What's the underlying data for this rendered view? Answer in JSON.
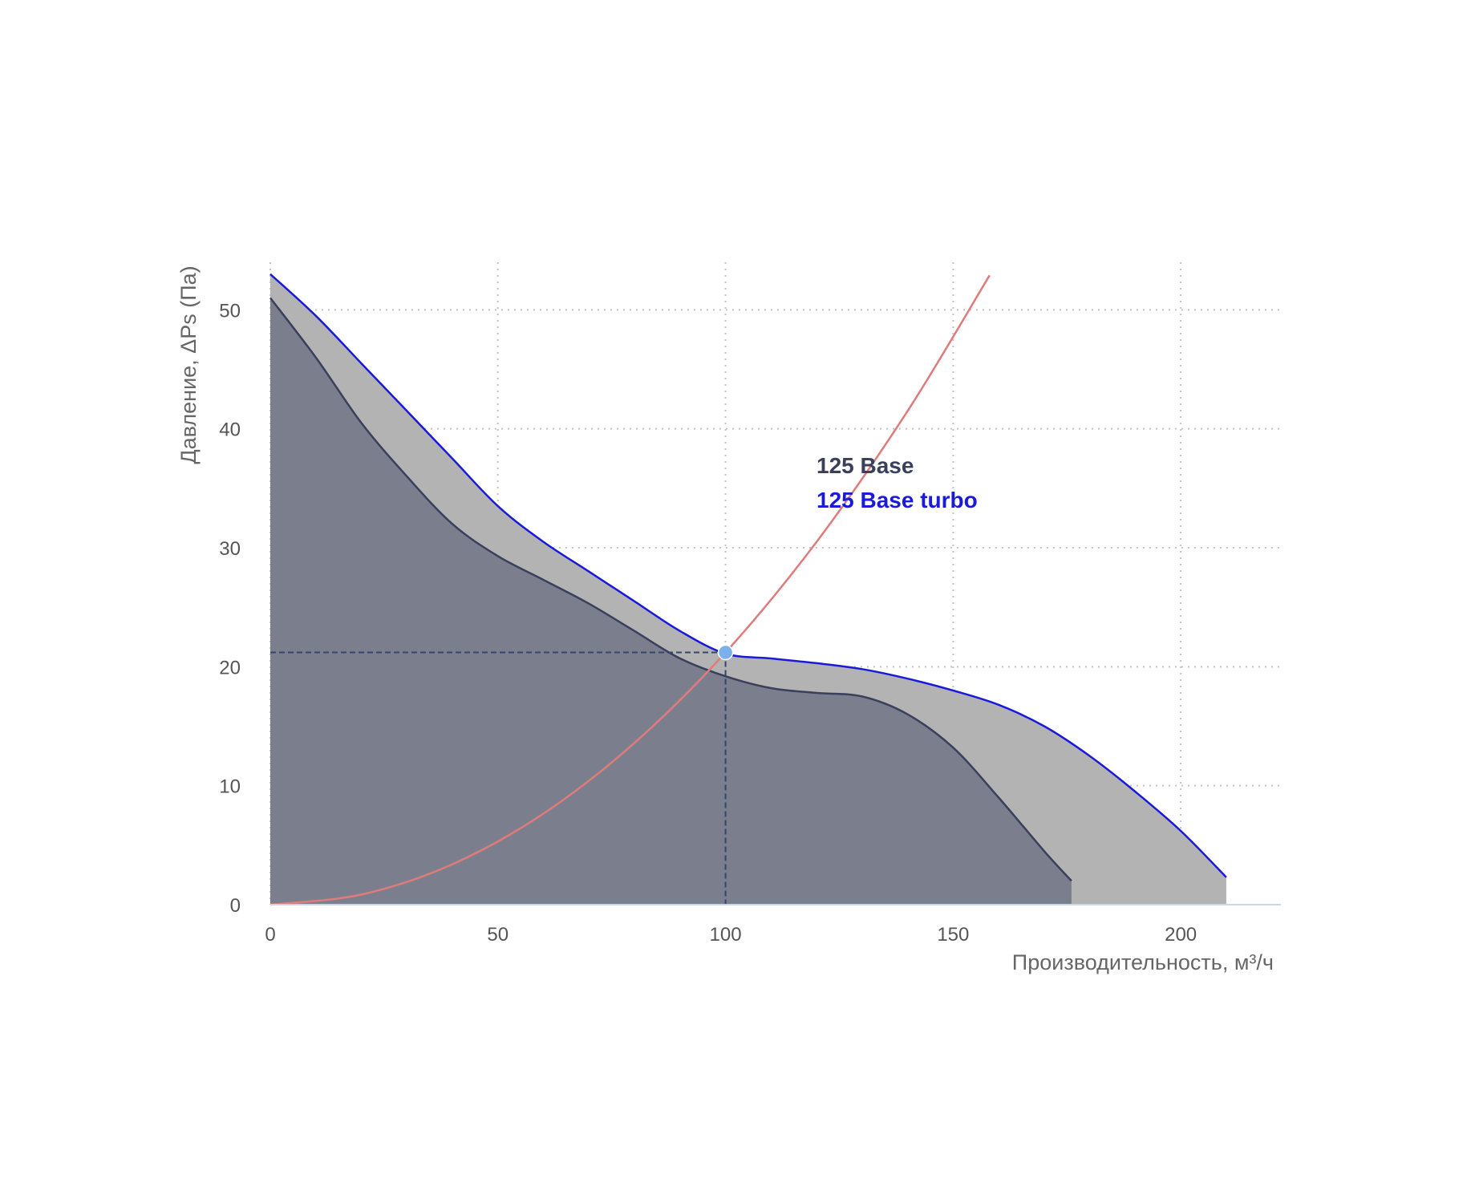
{
  "chart_data": {
    "type": "area",
    "xlabel": "Производительность, м³/ч",
    "ylabel": "Давление, ΔPs (Па)",
    "xlim": [
      0,
      222
    ],
    "ylim": [
      0,
      54
    ],
    "x_ticks": [
      "0",
      "50",
      "100",
      "150",
      "200"
    ],
    "y_ticks": [
      "0",
      "10",
      "20",
      "30",
      "40",
      "50"
    ],
    "grid": true,
    "legend_placement": "center",
    "series": [
      {
        "name": "125 Base",
        "color": "#3a3f5c",
        "fill": "#7b7f8d",
        "x": [
          0,
          10,
          20,
          30,
          40,
          50,
          60,
          70,
          80,
          90,
          100,
          110,
          120,
          130,
          140,
          150,
          160,
          170,
          176
        ],
        "y": [
          51,
          46,
          40.5,
          36,
          32,
          29.3,
          27.3,
          25.3,
          23,
          20.7,
          19.2,
          18.2,
          17.8,
          17.5,
          16,
          13.2,
          9,
          4.5,
          2
        ]
      },
      {
        "name": "125 Base turbo",
        "color": "#1a1adb",
        "fill": "#b3b3b3",
        "x": [
          0,
          10,
          20,
          30,
          40,
          50,
          60,
          70,
          80,
          90,
          100,
          110,
          120,
          130,
          140,
          150,
          160,
          170,
          180,
          190,
          200,
          210
        ],
        "y": [
          53,
          49.5,
          45.5,
          41.5,
          37.5,
          33.5,
          30.5,
          28,
          25.5,
          23,
          21.1,
          20.7,
          20.3,
          19.8,
          19,
          18,
          16.8,
          15,
          12.5,
          9.5,
          6.2,
          2.3
        ]
      },
      {
        "color": "#e07b7b",
        "x": [
          0,
          20,
          40,
          60,
          80,
          100,
          120,
          140,
          158
        ],
        "y": [
          0,
          0.85,
          3.4,
          7.65,
          13.6,
          21.2,
          30.5,
          41.5,
          52.9
        ]
      }
    ],
    "operating_point": {
      "x": 100,
      "y": 21.2,
      "color": "#7ab0ec"
    }
  }
}
